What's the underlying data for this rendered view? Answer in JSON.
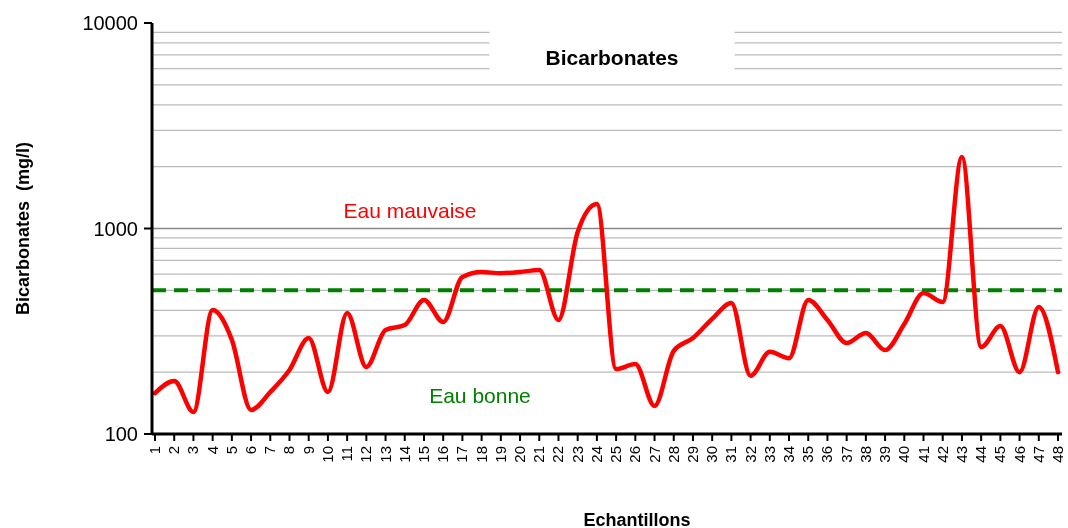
{
  "chart_data": {
    "type": "line",
    "title": "Bicarbonates",
    "xlabel": "Echantillons",
    "ylabel": "Bicarbonates  (mg/l)",
    "categories": [
      "1",
      "2",
      "3",
      "4",
      "5",
      "6",
      "7",
      "8",
      "9",
      "10",
      "11",
      "12",
      "13",
      "14",
      "15",
      "16",
      "17",
      "18",
      "19",
      "20",
      "21",
      "22",
      "23",
      "24",
      "25",
      "26",
      "27",
      "28",
      "29",
      "30",
      "31",
      "32",
      "33",
      "34",
      "35",
      "36",
      "37",
      "38",
      "39",
      "40",
      "41",
      "42",
      "43",
      "44",
      "45",
      "46",
      "47",
      "48"
    ],
    "series": [
      {
        "color": "#ff0000",
        "values": [
          158,
          181,
          128,
          401,
          287,
          131,
          160,
          205,
          293,
          160,
          388,
          212,
          321,
          339,
          449,
          351,
          581,
          614,
          606,
          614,
          628,
          359,
          961,
          1315,
          207,
          219,
          137,
          254,
          293,
          363,
          434,
          192,
          251,
          234,
          449,
          359,
          277,
          310,
          256,
          343,
          485,
          439,
          2228,
          265,
          335,
          200,
          415,
          200
        ]
      }
    ],
    "ylim": [
      100,
      10000
    ],
    "yticks": [
      100,
      1000,
      10000
    ],
    "log": true,
    "grid": "y",
    "marker": "none",
    "line_style": "solid",
    "ref_lines": [
      {
        "axis": "y",
        "value": 500,
        "color": "#008000",
        "line_style": "dashed"
      }
    ],
    "annotations": [
      "Eau mauvaise",
      "Eau bonne"
    ]
  }
}
